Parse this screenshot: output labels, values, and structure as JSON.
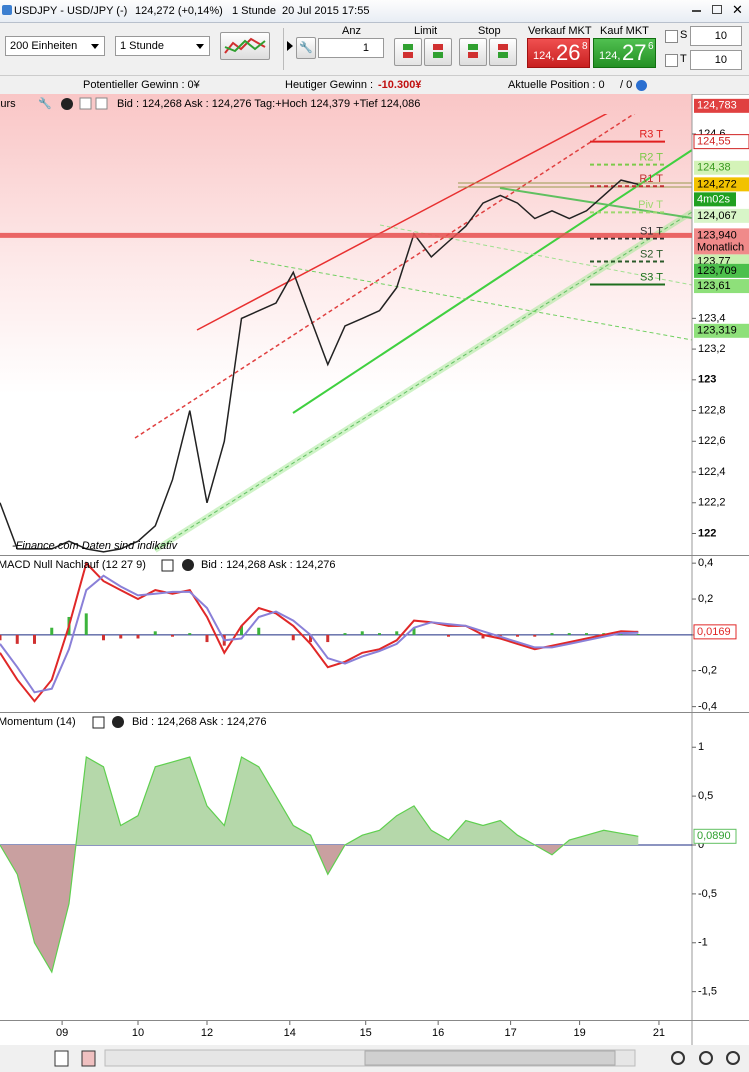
{
  "title_bar": {
    "symbol": "USDJPY - USD/JPY (-)",
    "price": "124,272 (+0,14%)",
    "timeframe": "1 Stunde",
    "datetime": "20 Jul 2015 17:55"
  },
  "toolbar": {
    "units": "200 Einheiten",
    "interval": "1 Stunde",
    "anz_label": "Anz",
    "anz_value": "1",
    "limit_label": "Limit",
    "stop_label": "Stop",
    "sell_label": "Verkauf MKT",
    "sell_prefix": "124,",
    "sell_big": "26",
    "sell_pip": "8",
    "buy_label": "Kauf MKT",
    "buy_prefix": "124,",
    "buy_big": "27",
    "buy_pip": "6",
    "s_label": "S",
    "s_value": "10",
    "t_label": "T",
    "t_value": "10"
  },
  "info_bar": {
    "potential": "Potentieller Gewinn : 0¥",
    "today_label": "Heutiger Gewinn :",
    "today_value": "-10.300¥",
    "position": "Aktuelle Position : 0",
    "position_extra": "/ 0"
  },
  "chart_data": [
    {
      "type": "line",
      "title": "Kurs",
      "subtitle": "Bid : 124,268 Ask : 124,276 Tag:+Hoch 124,379 +Tief 124,086",
      "watermark": "-Finance.com  Daten sind indikativ",
      "x": [
        0,
        5,
        10,
        15,
        20,
        25,
        30,
        35,
        40,
        45,
        50,
        55,
        60,
        65,
        70,
        75,
        80,
        85,
        90,
        95,
        100,
        105,
        110,
        115,
        120,
        125,
        130,
        135,
        140,
        145,
        150,
        155,
        160,
        165,
        170,
        175,
        180,
        185
      ],
      "values": [
        122.2,
        121.9,
        121.9,
        121.9,
        121.95,
        121.9,
        121.88,
        121.9,
        121.95,
        122.05,
        122.35,
        122.8,
        122.2,
        122.6,
        123.4,
        123.45,
        123.5,
        123.7,
        123.4,
        123.1,
        123.35,
        123.4,
        123.45,
        123.6,
        123.95,
        123.8,
        123.9,
        124.0,
        124.15,
        124.2,
        124.15,
        124.05,
        124.1,
        124.05,
        124.1,
        124.2,
        124.3,
        124.272
      ],
      "color": "#222222",
      "ylim": [
        121.86,
        124.86
      ],
      "yticks": [
        {
          "value": 124.6,
          "label": "124,6"
        },
        {
          "value": 123.4,
          "label": "123,4"
        },
        {
          "value": 123.2,
          "label": "123,2"
        },
        123,
        {
          "value": 122.8,
          "label": "122,8"
        },
        {
          "value": 122.6,
          "label": "122,6"
        },
        {
          "value": 122.4,
          "label": "122,4"
        },
        {
          "value": 122.2,
          "label": "122,2"
        },
        122
      ],
      "pivots": [
        {
          "label": "R3 T",
          "value": 124.55,
          "color": "#e02020",
          "dashed": false
        },
        {
          "label": "R2 T",
          "value": 124.4,
          "color": "#7cc94a",
          "dashed": true
        },
        {
          "label": "R1 T",
          "value": 124.26,
          "color": "#c03030",
          "dashed": true
        },
        {
          "label": "Piv T",
          "value": 124.09,
          "color": "#9ed870",
          "dashed": true
        },
        {
          "label": "S1 T",
          "value": 123.92,
          "color": "#333333",
          "dashed": true
        },
        {
          "label": "S2 T",
          "value": 123.77,
          "color": "#2a5a2a",
          "dashed": true
        },
        {
          "label": "S3 T",
          "value": 123.62,
          "color": "#1e6e1e",
          "dashed": false
        }
      ],
      "price_tags": [
        {
          "value": 124.783,
          "label": "124,783",
          "color": "#e04040",
          "text_color": "#ffffff"
        },
        {
          "value": 124.55,
          "label": "124,55",
          "color": "#ffffff",
          "text_color": "#d02020"
        },
        {
          "value": 124.38,
          "label": "124,38",
          "color": "#d4f3b8",
          "text_color": "#3a9a20"
        },
        {
          "value": 124.272,
          "label": "124,272",
          "color": "#f2c200",
          "text_color": "#000000"
        },
        {
          "value": 124.067,
          "label": "124,067",
          "color": "#d8f5c8",
          "text_color": "#000000"
        },
        {
          "value": 123.94,
          "label": "123,940",
          "color": "#f08a8a",
          "text_color": "#000000",
          "note": "Monatlich",
          "line": true
        },
        {
          "value": 123.77,
          "label": "123,77",
          "color": "#c8f0b0",
          "text_color": "#000000"
        },
        {
          "value": 123.709,
          "label": "123,709",
          "color": "#4cc04c",
          "text_color": "#000000"
        },
        {
          "value": 123.61,
          "label": "123,61",
          "color": "#8ee07a",
          "text_color": "#000000"
        },
        {
          "value": 123.319,
          "label": "123,319",
          "color": "#8ee07a",
          "text_color": "#000000"
        }
      ],
      "countdown": "4m02s"
    },
    {
      "type": "line",
      "title": "MACD Null Nachlauf (12 27 9)",
      "subtitle": "Bid : 124,268 Ask : 124,276",
      "x": [
        0,
        5,
        10,
        15,
        20,
        25,
        30,
        35,
        40,
        45,
        50,
        55,
        60,
        65,
        70,
        75,
        80,
        85,
        90,
        95,
        100,
        105,
        110,
        115,
        120,
        125,
        130,
        135,
        140,
        145,
        150,
        155,
        160,
        165,
        170,
        175,
        180,
        185
      ],
      "series": [
        {
          "color": "#e02828",
          "values": [
            -0.1,
            -0.25,
            -0.37,
            -0.25,
            0.05,
            0.4,
            0.3,
            0.25,
            0.2,
            0.25,
            0.23,
            0.25,
            0.1,
            -0.1,
            0.05,
            0.15,
            0.12,
            0.05,
            -0.05,
            -0.18,
            -0.15,
            -0.1,
            -0.08,
            -0.03,
            0.08,
            0.07,
            0.05,
            0.05,
            0.0,
            -0.02,
            -0.05,
            -0.08,
            -0.06,
            -0.04,
            -0.02,
            0.0,
            0.02,
            0.0169
          ]
        },
        {
          "color": "#8a80d8",
          "values": [
            -0.05,
            -0.18,
            -0.32,
            -0.3,
            -0.08,
            0.25,
            0.33,
            0.27,
            0.22,
            0.23,
            0.24,
            0.24,
            0.15,
            -0.03,
            -0.02,
            0.1,
            0.13,
            0.08,
            0.0,
            -0.13,
            -0.16,
            -0.12,
            -0.09,
            -0.05,
            0.04,
            0.07,
            0.06,
            0.05,
            0.02,
            -0.01,
            -0.04,
            -0.07,
            -0.07,
            -0.05,
            -0.03,
            -0.01,
            0.01,
            0.012
          ]
        }
      ],
      "histogram": {
        "positive_color": "#3cb43c",
        "negative_color": "#d03030",
        "values": [
          -0.03,
          -0.05,
          -0.05,
          0.04,
          0.1,
          0.12,
          -0.03,
          -0.02,
          -0.02,
          0.02,
          -0.01,
          0.01,
          -0.04,
          -0.06,
          0.05,
          0.04,
          0.0,
          -0.03,
          -0.04,
          -0.04,
          0.01,
          0.02,
          0.01,
          0.02,
          0.04,
          0.0,
          -0.01,
          0.0,
          -0.02,
          -0.01,
          -0.01,
          -0.01,
          0.01,
          0.01,
          0.01,
          0.01,
          0.01,
          0.005
        ]
      },
      "ylim": [
        -0.43,
        0.44
      ],
      "yticks": [
        {
          "value": 0.4,
          "label": "0,4"
        },
        {
          "value": 0.2,
          "label": "0,2"
        },
        0,
        {
          "value": -0.2,
          "label": "-0,2"
        },
        {
          "value": -0.4,
          "label": "-0,4"
        }
      ],
      "zero_line": true,
      "last_value": {
        "value": 0.0169,
        "label": "0,0169"
      }
    },
    {
      "type": "area",
      "title": "Momentum (14)",
      "subtitle": "Bid : 124,268 Ask : 124,276",
      "x": [
        0,
        5,
        10,
        15,
        20,
        25,
        30,
        35,
        40,
        45,
        50,
        55,
        60,
        65,
        70,
        75,
        80,
        85,
        90,
        95,
        100,
        105,
        110,
        115,
        120,
        125,
        130,
        135,
        140,
        145,
        150,
        155,
        160,
        165,
        170,
        175,
        180,
        185
      ],
      "values": [
        0,
        -0.3,
        -1.0,
        -1.3,
        -0.6,
        0.9,
        0.8,
        0.2,
        0.3,
        0.8,
        0.85,
        0.9,
        0.4,
        0.2,
        0.9,
        0.8,
        0.5,
        0.2,
        0.1,
        -0.3,
        0.0,
        0.1,
        0.15,
        0.3,
        0.4,
        0.15,
        0.05,
        0.25,
        0.2,
        0.25,
        0.1,
        0.0,
        -0.1,
        0.05,
        0.1,
        0.15,
        0.12,
        0.089
      ],
      "color": "#5fcf4f",
      "positive_color": "#b5d8aa",
      "negative_color": "#c9a0a0",
      "ylim": [
        -1.79,
        1.34
      ],
      "yticks": [
        1,
        {
          "value": 0.5,
          "label": "0,5"
        },
        0,
        {
          "value": -0.5,
          "label": "-0,5"
        },
        -1,
        {
          "value": -1.5,
          "label": "-1,5"
        }
      ],
      "zero_line": true,
      "last_value": {
        "value": 0.089,
        "label": "0,0890"
      },
      "xlim": [
        0,
        200
      ],
      "xticks": [
        {
          "value": 18,
          "label": "09"
        },
        {
          "value": 40,
          "label": "10"
        },
        {
          "value": 60,
          "label": "12"
        },
        {
          "value": 84,
          "label": "14"
        },
        {
          "value": 106,
          "label": "15"
        },
        {
          "value": 127,
          "label": "16"
        },
        {
          "value": 148,
          "label": "17"
        },
        {
          "value": 168,
          "label": "19"
        },
        {
          "value": 191,
          "label": "21"
        }
      ]
    }
  ]
}
